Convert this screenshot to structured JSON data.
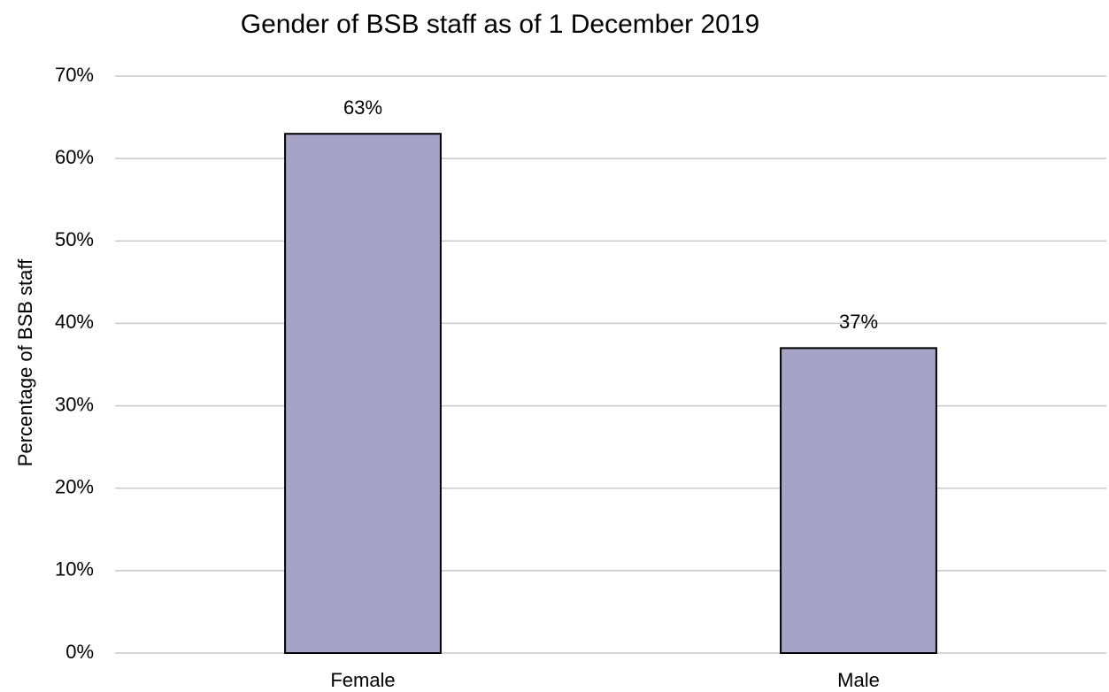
{
  "chart_data": {
    "type": "bar",
    "title": "Gender of BSB staff as of 1 December 2019",
    "y_label": "Percentage of BSB staff",
    "categories": [
      "Female",
      "Male"
    ],
    "values": [
      63,
      37
    ],
    "value_labels": [
      "63%",
      "37%"
    ],
    "color": "#a6a3c6",
    "ylim": [
      0,
      70
    ],
    "yticks": [
      {
        "value": 0,
        "label": "0%"
      },
      {
        "value": 10,
        "label": "10%"
      },
      {
        "value": 20,
        "label": "20%"
      },
      {
        "value": 30,
        "label": "30%"
      },
      {
        "value": 40,
        "label": "40%"
      },
      {
        "value": 50,
        "label": "50%"
      },
      {
        "value": 60,
        "label": "60%"
      },
      {
        "value": 70,
        "label": "70%"
      }
    ],
    "grid": true
  }
}
